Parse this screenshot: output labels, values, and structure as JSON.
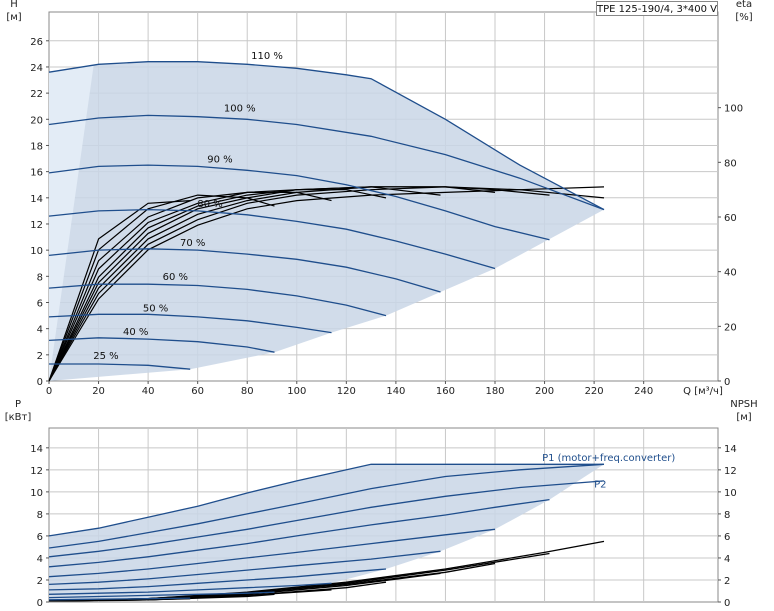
{
  "title": "TPE 125-190/4, 3*400 V",
  "colors": {
    "curve": "#1f4e8c",
    "region": "#c9d6e6",
    "region_light": "#e3ecf6",
    "grid": "#c8c8c8",
    "efficiency": "#000000"
  },
  "chart_data": [
    {
      "type": "line",
      "name": "head-chart",
      "xlabel": "Q [м³/ч]",
      "ylabel_left": "H\n[м]",
      "ylabel_right": "eta\n[%]",
      "x_ticks": [
        0,
        20,
        40,
        60,
        80,
        100,
        120,
        140,
        160,
        180,
        200,
        220,
        240
      ],
      "y_ticks": [
        0,
        2,
        4,
        6,
        8,
        10,
        12,
        14,
        16,
        18,
        20,
        22,
        24,
        26
      ],
      "y2_ticks": [
        0,
        20,
        40,
        60,
        80,
        100
      ],
      "xlim": [
        0,
        270
      ],
      "ylim": [
        0,
        28.2
      ],
      "y2lim": [
        0,
        135
      ],
      "grid": true,
      "series": [
        {
          "label": "110 %",
          "label_at": [
            88,
            24.6
          ],
          "x": [
            0,
            20,
            40,
            60,
            80,
            100,
            120,
            130,
            160,
            190,
            224
          ],
          "y": [
            23.6,
            24.2,
            24.4,
            24.4,
            24.2,
            23.9,
            23.4,
            23.1,
            20.0,
            16.5,
            13.1
          ]
        },
        {
          "label": "100 %",
          "label_at": [
            77,
            20.6
          ],
          "x": [
            0,
            20,
            40,
            60,
            80,
            100,
            130,
            160,
            190,
            224
          ],
          "y": [
            19.6,
            20.1,
            20.3,
            20.2,
            20.0,
            19.6,
            18.7,
            17.3,
            15.5,
            13.1
          ]
        },
        {
          "label": "90 %",
          "label_at": [
            69,
            16.7
          ],
          "x": [
            0,
            20,
            40,
            60,
            80,
            100,
            120,
            140,
            160,
            180,
            202
          ],
          "y": [
            15.9,
            16.4,
            16.5,
            16.4,
            16.1,
            15.7,
            15.0,
            14.1,
            13.0,
            11.8,
            10.8
          ]
        },
        {
          "label": "80 %",
          "label_at": [
            65,
            13.3
          ],
          "x": [
            0,
            20,
            40,
            60,
            80,
            100,
            120,
            140,
            160,
            180
          ],
          "y": [
            12.6,
            13.0,
            13.1,
            13.0,
            12.7,
            12.2,
            11.6,
            10.7,
            9.7,
            8.6
          ]
        },
        {
          "label": "70 %",
          "label_at": [
            58,
            10.3
          ],
          "x": [
            0,
            20,
            40,
            60,
            80,
            100,
            120,
            140,
            158
          ],
          "y": [
            9.6,
            10.0,
            10.1,
            10.0,
            9.7,
            9.3,
            8.7,
            7.8,
            6.8
          ]
        },
        {
          "label": "60 %",
          "label_at": [
            51,
            7.7
          ],
          "x": [
            0,
            20,
            40,
            60,
            80,
            100,
            120,
            136
          ],
          "y": [
            7.1,
            7.4,
            7.4,
            7.3,
            7.0,
            6.5,
            5.8,
            5.0
          ]
        },
        {
          "label": "50 %",
          "label_at": [
            43,
            5.3
          ],
          "x": [
            0,
            20,
            40,
            60,
            80,
            100,
            114
          ],
          "y": [
            4.9,
            5.1,
            5.1,
            4.9,
            4.6,
            4.1,
            3.7
          ]
        },
        {
          "label": "40 %",
          "label_at": [
            35,
            3.5
          ],
          "x": [
            0,
            20,
            40,
            60,
            80,
            91
          ],
          "y": [
            3.1,
            3.3,
            3.2,
            3.0,
            2.6,
            2.2
          ]
        },
        {
          "label": "25 %",
          "label_at": [
            23,
            1.7
          ],
          "x": [
            0,
            20,
            40,
            57
          ],
          "y": [
            1.3,
            1.3,
            1.2,
            0.9
          ]
        }
      ],
      "efficiency_curves": [
        {
          "x": [
            0,
            20,
            40,
            60,
            80,
            100,
            130,
            160,
            190,
            224
          ],
          "y": [
            0,
            30,
            48,
            57,
            63,
            66,
            68,
            69,
            70,
            71
          ]
        },
        {
          "x": [
            0,
            20,
            40,
            60,
            80,
            100,
            130,
            160,
            190,
            224
          ],
          "y": [
            0,
            32,
            50,
            59,
            65,
            68,
            70,
            71,
            70,
            67
          ]
        },
        {
          "x": [
            0,
            20,
            40,
            60,
            80,
            100,
            130,
            160,
            180,
            202
          ],
          "y": [
            0,
            34,
            52,
            61,
            66,
            69,
            71,
            71,
            70,
            68
          ]
        },
        {
          "x": [
            0,
            20,
            40,
            60,
            80,
            100,
            130,
            160,
            180
          ],
          "y": [
            0,
            36,
            54,
            63,
            67,
            70,
            71,
            71,
            69
          ]
        },
        {
          "x": [
            0,
            20,
            40,
            60,
            80,
            100,
            130,
            158
          ],
          "y": [
            0,
            38,
            56,
            64,
            68,
            70,
            71,
            68
          ]
        },
        {
          "x": [
            0,
            20,
            40,
            60,
            80,
            100,
            120,
            136
          ],
          "y": [
            0,
            41,
            58,
            65,
            69,
            70,
            70,
            67
          ]
        },
        {
          "x": [
            0,
            20,
            40,
            60,
            80,
            100,
            114
          ],
          "y": [
            0,
            44,
            60,
            67,
            69,
            69,
            66
          ]
        },
        {
          "x": [
            0,
            20,
            40,
            60,
            80,
            91
          ],
          "y": [
            0,
            48,
            63,
            68,
            67,
            64
          ]
        },
        {
          "x": [
            0,
            20,
            40,
            57
          ],
          "y": [
            0,
            52,
            65,
            66
          ]
        }
      ],
      "region": {
        "x": [
          0,
          20,
          40,
          60,
          80,
          100,
          120,
          130,
          160,
          190,
          224,
          180,
          158,
          136,
          114,
          91,
          57,
          0
        ],
        "y": [
          23.6,
          24.2,
          24.4,
          24.4,
          24.2,
          23.9,
          23.4,
          23.1,
          20.0,
          16.5,
          13.1,
          8.6,
          6.8,
          5.0,
          3.7,
          2.2,
          0.9,
          0
        ]
      }
    },
    {
      "type": "line",
      "name": "power-chart",
      "xlabel": "",
      "ylabel_left": "P\n[кВт]",
      "ylabel_right": "NPSH\n[м]",
      "y_ticks": [
        0,
        2,
        4,
        6,
        8,
        10,
        12,
        14
      ],
      "y2_ticks": [
        0,
        2,
        4,
        6,
        8,
        10,
        12,
        14
      ],
      "xlim": [
        0,
        270
      ],
      "ylim": [
        0,
        15.8
      ],
      "y2lim": [
        0,
        15.8
      ],
      "grid": true,
      "series": [
        {
          "label": "P1 (motor+freq.converter)",
          "label_at": [
            199,
            12.8
          ],
          "x": [
            0,
            20,
            40,
            60,
            80,
            100,
            130,
            224
          ],
          "y": [
            6.0,
            6.7,
            7.7,
            8.7,
            9.9,
            11.0,
            12.5,
            12.5
          ]
        },
        {
          "label": "P2",
          "label_at": [
            220,
            10.4
          ],
          "x": [
            0,
            20,
            40,
            60,
            80,
            100,
            130,
            160,
            190,
            224
          ],
          "y": [
            4.9,
            5.5,
            6.3,
            7.1,
            8.0,
            8.9,
            10.3,
            11.4,
            12.0,
            12.5
          ]
        },
        {
          "label": "",
          "x": [
            0,
            20,
            40,
            60,
            80,
            100,
            130,
            160,
            190,
            224
          ],
          "y": [
            4.1,
            4.6,
            5.2,
            5.9,
            6.6,
            7.4,
            8.6,
            9.6,
            10.4,
            11.0
          ]
        },
        {
          "label": "",
          "x": [
            0,
            20,
            40,
            60,
            80,
            100,
            130,
            160,
            180,
            202
          ],
          "y": [
            3.2,
            3.6,
            4.1,
            4.7,
            5.3,
            6.0,
            7.0,
            7.9,
            8.6,
            9.3
          ]
        },
        {
          "label": "",
          "x": [
            0,
            20,
            40,
            60,
            80,
            100,
            130,
            160,
            180
          ],
          "y": [
            2.3,
            2.6,
            3.0,
            3.5,
            4.0,
            4.5,
            5.3,
            6.1,
            6.6
          ]
        },
        {
          "label": "",
          "x": [
            0,
            20,
            40,
            60,
            80,
            100,
            130,
            158
          ],
          "y": [
            1.6,
            1.8,
            2.1,
            2.5,
            2.9,
            3.3,
            3.9,
            4.6
          ]
        },
        {
          "label": "",
          "x": [
            0,
            20,
            40,
            60,
            80,
            100,
            120,
            136
          ],
          "y": [
            1.1,
            1.2,
            1.4,
            1.7,
            2.0,
            2.3,
            2.7,
            3.0
          ]
        },
        {
          "label": "",
          "x": [
            0,
            20,
            40,
            60,
            80,
            100,
            114
          ],
          "y": [
            0.7,
            0.8,
            0.9,
            1.1,
            1.3,
            1.5,
            1.7
          ]
        },
        {
          "label": "",
          "x": [
            0,
            20,
            40,
            60,
            80,
            91
          ],
          "y": [
            0.4,
            0.5,
            0.6,
            0.7,
            0.8,
            0.9
          ]
        },
        {
          "label": "",
          "x": [
            0,
            20,
            40,
            57
          ],
          "y": [
            0.2,
            0.25,
            0.3,
            0.35
          ]
        }
      ],
      "npsh_curves": [
        {
          "x": [
            0,
            40,
            80,
            120,
            160,
            200,
            224
          ],
          "y": [
            0.1,
            0.3,
            0.9,
            1.8,
            3.0,
            4.5,
            5.5
          ]
        },
        {
          "x": [
            0,
            40,
            80,
            120,
            160,
            202
          ],
          "y": [
            0.1,
            0.3,
            0.8,
            1.7,
            2.9,
            4.4
          ]
        },
        {
          "x": [
            0,
            40,
            80,
            120,
            160,
            180
          ],
          "y": [
            0.1,
            0.3,
            0.8,
            1.6,
            2.7,
            3.5
          ]
        },
        {
          "x": [
            0,
            40,
            80,
            120,
            158
          ],
          "y": [
            0.1,
            0.2,
            0.7,
            1.5,
            2.6
          ]
        },
        {
          "x": [
            0,
            40,
            80,
            120,
            136
          ],
          "y": [
            0.1,
            0.2,
            0.6,
            1.3,
            1.8
          ]
        },
        {
          "x": [
            0,
            40,
            80,
            114
          ],
          "y": [
            0.1,
            0.2,
            0.6,
            1.1
          ]
        },
        {
          "x": [
            0,
            40,
            80,
            91
          ],
          "y": [
            0.1,
            0.2,
            0.5,
            0.7
          ]
        },
        {
          "x": [
            0,
            30,
            57
          ],
          "y": [
            0.1,
            0.15,
            0.3
          ]
        }
      ],
      "region": {
        "x": [
          0,
          20,
          40,
          60,
          80,
          100,
          130,
          224,
          202,
          180,
          158,
          136,
          114,
          91,
          57,
          0
        ],
        "y": [
          6.0,
          6.7,
          7.7,
          8.7,
          9.9,
          11.0,
          12.5,
          12.5,
          9.3,
          6.6,
          4.6,
          3.0,
          1.7,
          0.9,
          0.35,
          0.2
        ]
      }
    }
  ]
}
